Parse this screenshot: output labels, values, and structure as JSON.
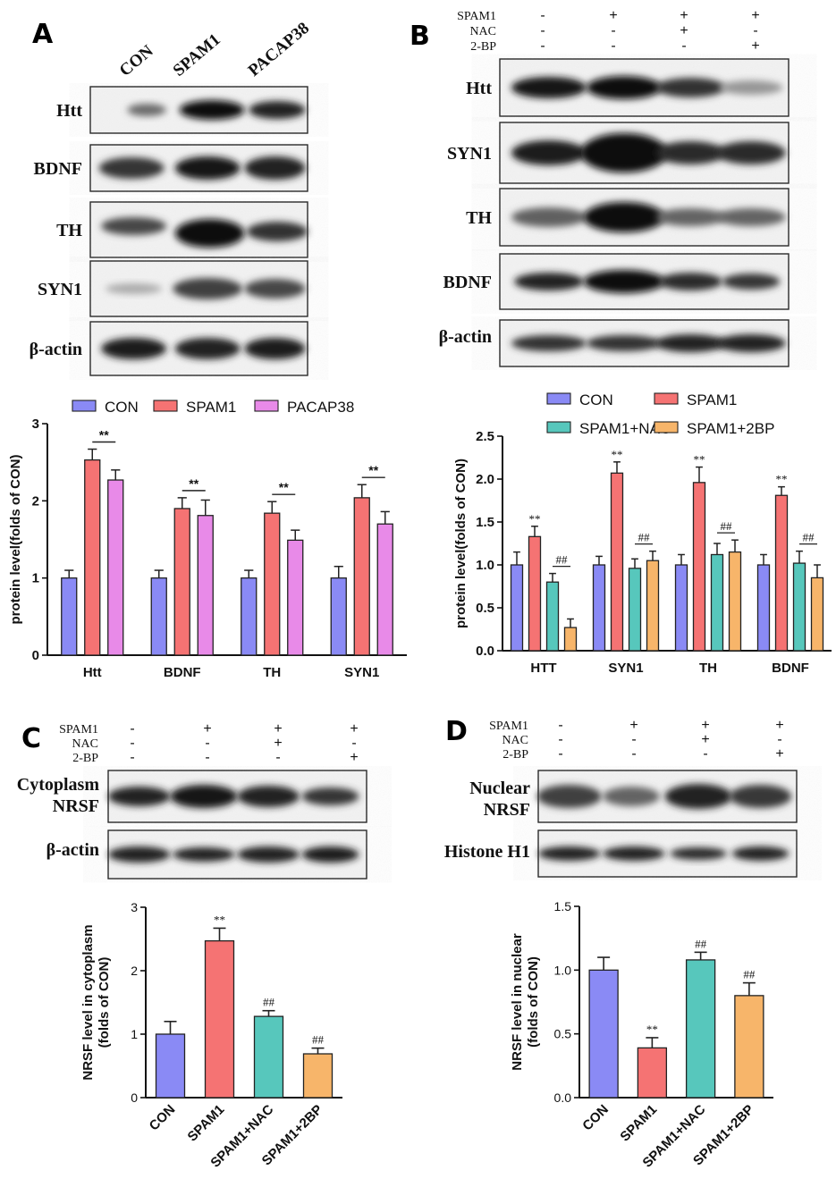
{
  "colors": {
    "con": "#8a8af5",
    "spam1": "#f57373",
    "pacap": "#e88ae8",
    "nac": "#57c7bc",
    "bp": "#f7b56a"
  },
  "panels": {
    "a": {
      "letter": "A",
      "lanes": [
        "CON",
        "SPAM1",
        "PACAP38"
      ],
      "blots": [
        "Htt",
        "BDNF",
        "TH",
        "SYN1",
        "β-actin"
      ]
    },
    "b": {
      "letter": "B",
      "treatments": [
        {
          "name": "SPAM1",
          "signs": [
            "-",
            "+",
            "+",
            "+"
          ]
        },
        {
          "name": "NAC",
          "signs": [
            "-",
            "-",
            "+",
            "-"
          ]
        },
        {
          "name": "2-BP",
          "signs": [
            "-",
            "-",
            "-",
            "+"
          ]
        }
      ],
      "blots": [
        "Htt",
        "SYN1",
        "TH",
        "BDNF",
        "β-actin"
      ]
    },
    "c": {
      "letter": "C",
      "treatments": [
        {
          "name": "SPAM1",
          "signs": [
            "-",
            "+",
            "+",
            "+"
          ]
        },
        {
          "name": "NAC",
          "signs": [
            "-",
            "-",
            "+",
            "-"
          ]
        },
        {
          "name": "2-BP",
          "signs": [
            "-",
            "-",
            "-",
            "+"
          ]
        }
      ],
      "blots": [
        [
          "Cytoplasm",
          "NRSF"
        ],
        [
          "β-actin"
        ]
      ]
    },
    "d": {
      "letter": "D",
      "treatments": [
        {
          "name": "SPAM1",
          "signs": [
            "-",
            "+",
            "+",
            "+"
          ]
        },
        {
          "name": "NAC",
          "signs": [
            "-",
            "-",
            "+",
            "-"
          ]
        },
        {
          "name": "2-BP",
          "signs": [
            "-",
            "-",
            "-",
            "+"
          ]
        }
      ],
      "blots": [
        [
          "Nuclear",
          "NRSF"
        ],
        [
          "Histone H1"
        ]
      ]
    }
  },
  "chart_data": [
    {
      "id": "A",
      "type": "bar",
      "categories": [
        "Htt",
        "BDNF",
        "TH",
        "SYN1"
      ],
      "series": [
        {
          "name": "CON",
          "values": [
            1.0,
            1.0,
            1.0,
            1.0
          ],
          "errors": [
            0.1,
            0.1,
            0.1,
            0.15
          ]
        },
        {
          "name": "SPAM1",
          "values": [
            2.53,
            1.9,
            1.84,
            2.04
          ],
          "errors": [
            0.14,
            0.14,
            0.15,
            0.17
          ]
        },
        {
          "name": "PACAP38",
          "values": [
            2.27,
            1.81,
            1.49,
            1.7
          ],
          "errors": [
            0.13,
            0.2,
            0.13,
            0.16
          ]
        }
      ],
      "ylabel": "protein level(folds of CON)",
      "ylim": [
        0,
        3
      ],
      "yticks": [
        "0",
        "1",
        "2",
        "3"
      ],
      "legend": "top",
      "annotations": [
        "**",
        "**",
        "**",
        "**"
      ]
    },
    {
      "id": "B",
      "type": "bar",
      "categories": [
        "HTT",
        "SYN1",
        "TH",
        "BDNF"
      ],
      "series": [
        {
          "name": "CON",
          "values": [
            1.0,
            1.0,
            1.0,
            1.0
          ],
          "errors": [
            0.15,
            0.1,
            0.12,
            0.12
          ]
        },
        {
          "name": "SPAM1",
          "values": [
            1.33,
            2.07,
            1.96,
            1.81
          ],
          "errors": [
            0.12,
            0.13,
            0.18,
            0.1
          ]
        },
        {
          "name": "SPAM1+NAC",
          "values": [
            0.8,
            0.96,
            1.12,
            1.02
          ],
          "errors": [
            0.1,
            0.11,
            0.13,
            0.14
          ]
        },
        {
          "name": "SPAM1+2BP",
          "values": [
            0.27,
            1.05,
            1.15,
            0.85
          ],
          "errors": [
            0.1,
            0.11,
            0.14,
            0.15
          ]
        }
      ],
      "ylabel": "protein level(folds of CON)",
      "ylim": [
        0,
        2.5
      ],
      "yticks": [
        "0.0",
        "0.5",
        "1.0",
        "1.5",
        "2.0",
        "2.5"
      ],
      "legend": "top",
      "annotations": [
        "**",
        "##"
      ]
    },
    {
      "id": "C",
      "type": "bar",
      "categories": [
        "CON",
        "SPAM1",
        "SPAM1+NAC",
        "SPAM1+2BP"
      ],
      "values": [
        1.0,
        2.47,
        1.28,
        0.69
      ],
      "errors": [
        0.2,
        0.2,
        0.09,
        0.09
      ],
      "labels": [
        "",
        "**",
        "##",
        "##"
      ],
      "ylabel_lines": [
        "NRSF level in cytoplasm",
        "(folds of CON)"
      ],
      "ylim": [
        0,
        3
      ],
      "yticks": [
        "0",
        "1",
        "2",
        "3"
      ]
    },
    {
      "id": "D",
      "type": "bar",
      "categories": [
        "CON",
        "SPAM1",
        "SPAM1+NAC",
        "SPAM1+2BP"
      ],
      "values": [
        1.0,
        0.39,
        1.08,
        0.8
      ],
      "errors": [
        0.1,
        0.08,
        0.06,
        0.1
      ],
      "labels": [
        "",
        "**",
        "##",
        "##"
      ],
      "ylabel_lines": [
        "NRSF level in nuclear",
        "(folds of CON)"
      ],
      "ylim": [
        0,
        1.5
      ],
      "yticks": [
        "0.0",
        "0.5",
        "1.0",
        "1.5"
      ]
    }
  ]
}
